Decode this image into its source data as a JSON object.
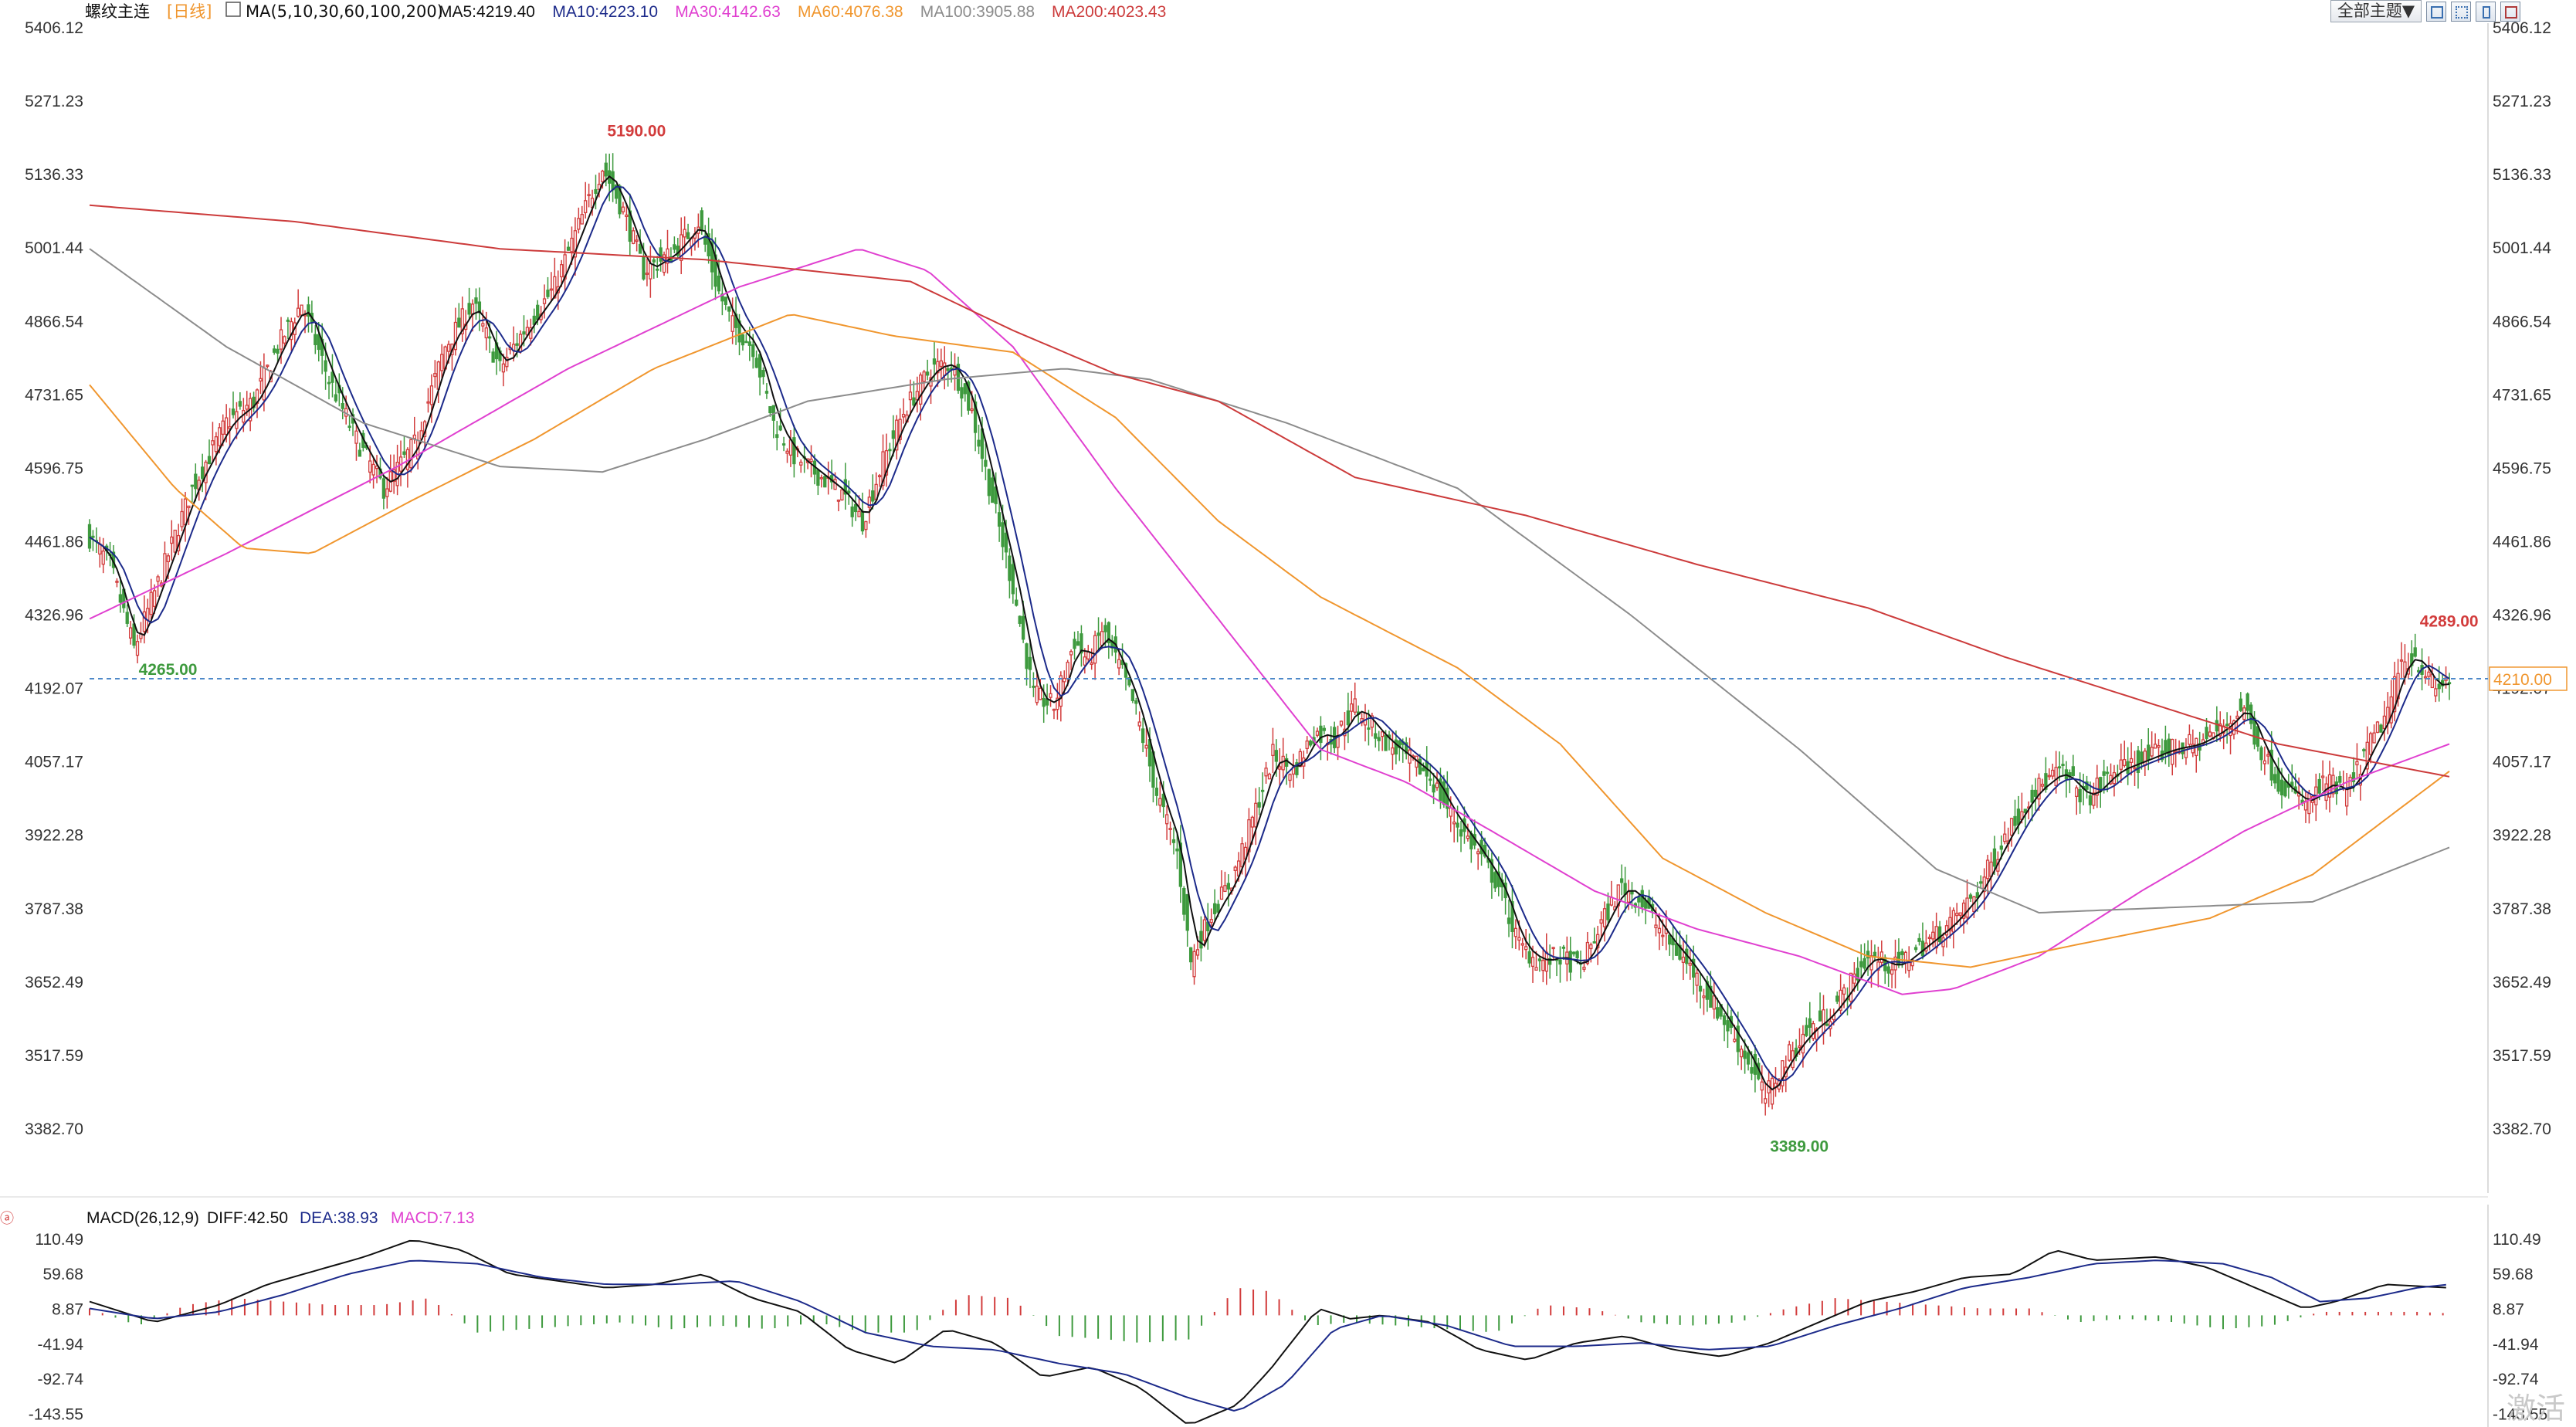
{
  "header": {
    "symbol": "螺纹主连",
    "period": "[日线]",
    "ma_params": "MA(5,10,30,60,100,200)",
    "ma_values": [
      {
        "label": "MA5:4219.40",
        "color": "#111111"
      },
      {
        "label": "MA10:4223.10",
        "color": "#1c2a8a"
      },
      {
        "label": "MA30:4142.63",
        "color": "#e040d0"
      },
      {
        "label": "MA60:4076.38",
        "color": "#f0962e"
      },
      {
        "label": "MA100:3905.88",
        "color": "#8c8c8c"
      },
      {
        "label": "MA200:4023.43",
        "color": "#cc3b3b"
      }
    ]
  },
  "toolbar": {
    "theme_label": "全部主题▼",
    "buttons": [
      "zoom-icon",
      "grid-icon",
      "split-icon",
      "tools-icon"
    ]
  },
  "watermark": "激活",
  "main_axis": {
    "labels": [
      "5406.12",
      "5271.23",
      "5136.33",
      "5001.44",
      "4866.54",
      "4731.65",
      "4596.75",
      "4461.86",
      "4326.96",
      "4192.07",
      "4057.17",
      "3922.28",
      "3787.38",
      "3652.49",
      "3517.59",
      "3382.70"
    ],
    "values": [
      5406.12,
      5271.23,
      5136.33,
      5001.44,
      4866.54,
      4731.65,
      4596.75,
      4461.86,
      4326.96,
      4192.07,
      4057.17,
      3922.28,
      3787.38,
      3652.49,
      3517.59,
      3382.7
    ]
  },
  "macd_header": {
    "params": "MACD(26,12,9)",
    "diff": "DIFF:42.50",
    "dea": "DEA:38.93",
    "macd": "MACD:7.13"
  },
  "macd_axis": {
    "labels": [
      "110.49",
      "59.68",
      "8.87",
      "-41.94",
      "-92.74",
      "-143.55"
    ],
    "values": [
      110.49,
      59.68,
      8.87,
      -41.94,
      -92.74,
      -143.55
    ]
  },
  "colors": {
    "up": "#d23c3c",
    "down": "#3e9a3e",
    "diff": "#111111",
    "dea": "#1c2a8a",
    "dash": "#4a86c8",
    "axis_text": "#333333"
  },
  "chart_data": {
    "type": "candlestick",
    "ylim": [
      3382.7,
      5406.12
    ],
    "series_count_note": "daily candles, oldest to newest",
    "anchors": [
      [
        0,
        4470
      ],
      [
        6,
        4420
      ],
      [
        13,
        4265
      ],
      [
        22,
        4420
      ],
      [
        30,
        4560
      ],
      [
        40,
        4680
      ],
      [
        48,
        4720
      ],
      [
        55,
        4820
      ],
      [
        62,
        4900
      ],
      [
        70,
        4760
      ],
      [
        78,
        4650
      ],
      [
        86,
        4560
      ],
      [
        95,
        4640
      ],
      [
        104,
        4820
      ],
      [
        112,
        4900
      ],
      [
        120,
        4780
      ],
      [
        128,
        4860
      ],
      [
        136,
        4930
      ],
      [
        146,
        5090
      ],
      [
        150,
        5150
      ],
      [
        156,
        5070
      ],
      [
        162,
        4960
      ],
      [
        170,
        4990
      ],
      [
        178,
        5050
      ],
      [
        184,
        4920
      ],
      [
        188,
        4860
      ],
      [
        194,
        4820
      ],
      [
        200,
        4680
      ],
      [
        206,
        4620
      ],
      [
        212,
        4590
      ],
      [
        220,
        4550
      ],
      [
        226,
        4500
      ],
      [
        232,
        4610
      ],
      [
        238,
        4700
      ],
      [
        246,
        4780
      ],
      [
        252,
        4790
      ],
      [
        258,
        4700
      ],
      [
        264,
        4540
      ],
      [
        270,
        4380
      ],
      [
        276,
        4180
      ],
      [
        282,
        4160
      ],
      [
        288,
        4280
      ],
      [
        292,
        4240
      ],
      [
        296,
        4300
      ],
      [
        302,
        4220
      ],
      [
        306,
        4150
      ],
      [
        312,
        4000
      ],
      [
        318,
        3890
      ],
      [
        322,
        3690
      ],
      [
        328,
        3780
      ],
      [
        334,
        3840
      ],
      [
        340,
        3950
      ],
      [
        346,
        4070
      ],
      [
        352,
        4040
      ],
      [
        358,
        4110
      ],
      [
        364,
        4100
      ],
      [
        370,
        4160
      ],
      [
        378,
        4100
      ],
      [
        386,
        4060
      ],
      [
        392,
        4030
      ],
      [
        398,
        3960
      ],
      [
        406,
        3890
      ],
      [
        412,
        3830
      ],
      [
        418,
        3720
      ],
      [
        424,
        3690
      ],
      [
        430,
        3700
      ],
      [
        436,
        3680
      ],
      [
        442,
        3760
      ],
      [
        448,
        3830
      ],
      [
        454,
        3800
      ],
      [
        460,
        3740
      ],
      [
        468,
        3680
      ],
      [
        476,
        3600
      ],
      [
        484,
        3520
      ],
      [
        490,
        3440
      ],
      [
        496,
        3510
      ],
      [
        502,
        3560
      ],
      [
        508,
        3590
      ],
      [
        514,
        3640
      ],
      [
        520,
        3700
      ],
      [
        528,
        3680
      ],
      [
        536,
        3720
      ],
      [
        544,
        3760
      ],
      [
        552,
        3820
      ],
      [
        560,
        3920
      ],
      [
        568,
        4000
      ],
      [
        576,
        4040
      ],
      [
        584,
        3990
      ],
      [
        592,
        4040
      ],
      [
        600,
        4060
      ],
      [
        608,
        4080
      ],
      [
        616,
        4090
      ],
      [
        624,
        4120
      ],
      [
        630,
        4160
      ],
      [
        634,
        4090
      ],
      [
        640,
        4020
      ],
      [
        648,
        3980
      ],
      [
        654,
        4020
      ],
      [
        660,
        4000
      ],
      [
        666,
        4080
      ],
      [
        672,
        4150
      ],
      [
        676,
        4240
      ],
      [
        680,
        4250
      ],
      [
        686,
        4190
      ],
      [
        690,
        4210
      ]
    ],
    "labels": [
      {
        "text": "5190.00",
        "value": 5190.0,
        "index": 150,
        "color": "#d23c3c"
      },
      {
        "text": "4265.00",
        "value": 4265.0,
        "index": 13,
        "color": "#3e9a3e"
      },
      {
        "text": "3389.00",
        "value": 3389.0,
        "index": 490,
        "color": "#3e9a3e"
      },
      {
        "text": "4289.00",
        "value": 4289.0,
        "index": 680,
        "color": "#d23c3c"
      }
    ],
    "current_price": {
      "text": "4210.00",
      "value": 4210.0
    },
    "moving_averages": [
      {
        "name": "MA30",
        "color": "#e040d0",
        "points": [
          [
            0,
            4320
          ],
          [
            40,
            4440
          ],
          [
            90,
            4600
          ],
          [
            140,
            4780
          ],
          [
            190,
            4930
          ],
          [
            225,
            5000
          ],
          [
            245,
            4960
          ],
          [
            270,
            4820
          ],
          [
            300,
            4560
          ],
          [
            330,
            4320
          ],
          [
            360,
            4080
          ],
          [
            385,
            4020
          ],
          [
            410,
            3930
          ],
          [
            440,
            3820
          ],
          [
            470,
            3750
          ],
          [
            500,
            3700
          ],
          [
            530,
            3630
          ],
          [
            545,
            3640
          ],
          [
            570,
            3700
          ],
          [
            600,
            3820
          ],
          [
            630,
            3930
          ],
          [
            660,
            4020
          ],
          [
            690,
            4090
          ]
        ]
      },
      {
        "name": "MA60",
        "color": "#f0962e",
        "points": [
          [
            0,
            4750
          ],
          [
            25,
            4560
          ],
          [
            45,
            4450
          ],
          [
            65,
            4440
          ],
          [
            95,
            4540
          ],
          [
            130,
            4650
          ],
          [
            165,
            4780
          ],
          [
            205,
            4880
          ],
          [
            235,
            4840
          ],
          [
            270,
            4810
          ],
          [
            300,
            4690
          ],
          [
            330,
            4500
          ],
          [
            360,
            4360
          ],
          [
            400,
            4230
          ],
          [
            430,
            4090
          ],
          [
            460,
            3880
          ],
          [
            490,
            3780
          ],
          [
            520,
            3700
          ],
          [
            550,
            3680
          ],
          [
            580,
            3720
          ],
          [
            620,
            3770
          ],
          [
            650,
            3850
          ],
          [
            690,
            4040
          ]
        ]
      },
      {
        "name": "MA100",
        "color": "#8c8c8c",
        "points": [
          [
            0,
            5000
          ],
          [
            40,
            4820
          ],
          [
            80,
            4680
          ],
          [
            120,
            4600
          ],
          [
            150,
            4590
          ],
          [
            180,
            4650
          ],
          [
            210,
            4720
          ],
          [
            250,
            4760
          ],
          [
            285,
            4780
          ],
          [
            310,
            4760
          ],
          [
            350,
            4680
          ],
          [
            400,
            4560
          ],
          [
            450,
            4330
          ],
          [
            500,
            4080
          ],
          [
            540,
            3860
          ],
          [
            570,
            3780
          ],
          [
            610,
            3790
          ],
          [
            650,
            3800
          ],
          [
            690,
            3900
          ]
        ]
      },
      {
        "name": "MA200",
        "color": "#cc3b3b",
        "points": [
          [
            0,
            5080
          ],
          [
            60,
            5050
          ],
          [
            120,
            5000
          ],
          [
            180,
            4980
          ],
          [
            240,
            4940
          ],
          [
            270,
            4850
          ],
          [
            300,
            4770
          ],
          [
            330,
            4720
          ],
          [
            370,
            4580
          ],
          [
            420,
            4510
          ],
          [
            470,
            4420
          ],
          [
            520,
            4340
          ],
          [
            560,
            4250
          ],
          [
            600,
            4170
          ],
          [
            640,
            4090
          ],
          [
            690,
            4030
          ]
        ]
      }
    ],
    "macd": {
      "ylim": [
        -160,
        125
      ],
      "diff_points": [
        [
          0,
          20
        ],
        [
          20,
          -10
        ],
        [
          40,
          15
        ],
        [
          55,
          45
        ],
        [
          70,
          65
        ],
        [
          85,
          85
        ],
        [
          100,
          110
        ],
        [
          115,
          95
        ],
        [
          130,
          60
        ],
        [
          145,
          50
        ],
        [
          160,
          40
        ],
        [
          175,
          45
        ],
        [
          190,
          60
        ],
        [
          205,
          25
        ],
        [
          220,
          5
        ],
        [
          235,
          -50
        ],
        [
          250,
          -70
        ],
        [
          265,
          -20
        ],
        [
          280,
          -40
        ],
        [
          295,
          -90
        ],
        [
          310,
          -75
        ],
        [
          325,
          -105
        ],
        [
          340,
          -160
        ],
        [
          355,
          -130
        ],
        [
          365,
          -80
        ],
        [
          380,
          10
        ],
        [
          390,
          -5
        ],
        [
          400,
          0
        ],
        [
          415,
          -10
        ],
        [
          430,
          -50
        ],
        [
          445,
          -65
        ],
        [
          460,
          -40
        ],
        [
          475,
          -30
        ],
        [
          490,
          -50
        ],
        [
          505,
          -60
        ],
        [
          520,
          -40
        ],
        [
          535,
          -10
        ],
        [
          550,
          20
        ],
        [
          565,
          35
        ],
        [
          580,
          55
        ],
        [
          595,
          60
        ],
        [
          608,
          95
        ],
        [
          620,
          80
        ],
        [
          640,
          85
        ],
        [
          655,
          70
        ],
        [
          670,
          40
        ],
        [
          685,
          10
        ],
        [
          695,
          20
        ],
        [
          710,
          45
        ],
        [
          730,
          40
        ]
      ],
      "dea_points": [
        [
          0,
          10
        ],
        [
          20,
          -5
        ],
        [
          40,
          5
        ],
        [
          60,
          30
        ],
        [
          80,
          60
        ],
        [
          100,
          80
        ],
        [
          120,
          75
        ],
        [
          140,
          55
        ],
        [
          160,
          45
        ],
        [
          180,
          45
        ],
        [
          200,
          50
        ],
        [
          220,
          20
        ],
        [
          240,
          -25
        ],
        [
          260,
          -45
        ],
        [
          280,
          -50
        ],
        [
          300,
          -70
        ],
        [
          320,
          -85
        ],
        [
          340,
          -120
        ],
        [
          355,
          -140
        ],
        [
          370,
          -100
        ],
        [
          385,
          -20
        ],
        [
          400,
          0
        ],
        [
          420,
          -15
        ],
        [
          440,
          -45
        ],
        [
          460,
          -45
        ],
        [
          480,
          -40
        ],
        [
          500,
          -50
        ],
        [
          520,
          -45
        ],
        [
          540,
          -15
        ],
        [
          560,
          10
        ],
        [
          580,
          40
        ],
        [
          600,
          55
        ],
        [
          620,
          75
        ],
        [
          640,
          80
        ],
        [
          660,
          75
        ],
        [
          675,
          55
        ],
        [
          690,
          20
        ],
        [
          705,
          25
        ],
        [
          720,
          40
        ],
        [
          730,
          45
        ]
      ],
      "bar_points": [
        [
          0,
          10
        ],
        [
          15,
          -15
        ],
        [
          30,
          15
        ],
        [
          45,
          25
        ],
        [
          60,
          20
        ],
        [
          75,
          15
        ],
        [
          90,
          15
        ],
        [
          105,
          25
        ],
        [
          120,
          -25
        ],
        [
          135,
          -20
        ],
        [
          150,
          -15
        ],
        [
          165,
          -10
        ],
        [
          180,
          -20
        ],
        [
          195,
          -15
        ],
        [
          210,
          -20
        ],
        [
          225,
          -10
        ],
        [
          240,
          -25
        ],
        [
          255,
          -25
        ],
        [
          270,
          30
        ],
        [
          285,
          25
        ],
        [
          300,
          -30
        ],
        [
          315,
          -35
        ],
        [
          325,
          -40
        ],
        [
          340,
          -35
        ],
        [
          355,
          40
        ],
        [
          365,
          35
        ],
        [
          378,
          -15
        ],
        [
          390,
          -10
        ],
        [
          405,
          -15
        ],
        [
          420,
          -20
        ],
        [
          435,
          -25
        ],
        [
          450,
          15
        ],
        [
          465,
          10
        ],
        [
          480,
          -10
        ],
        [
          495,
          -15
        ],
        [
          510,
          -10
        ],
        [
          525,
          10
        ],
        [
          540,
          25
        ],
        [
          555,
          20
        ],
        [
          570,
          15
        ],
        [
          585,
          10
        ],
        [
          600,
          10
        ],
        [
          615,
          -10
        ],
        [
          630,
          -5
        ],
        [
          645,
          -10
        ],
        [
          660,
          -20
        ],
        [
          675,
          -15
        ],
        [
          690,
          5
        ],
        [
          705,
          5
        ],
        [
          720,
          5
        ],
        [
          730,
          3
        ]
      ]
    }
  }
}
